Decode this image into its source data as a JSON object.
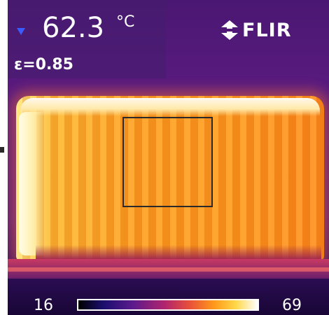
{
  "measurement": {
    "spot_temperature": "62.3",
    "unit": "°C",
    "emissivity": "ε=0.85"
  },
  "logo": {
    "text": "FLIR"
  },
  "scale": {
    "min": "16",
    "max": "69"
  },
  "colors": {
    "hot": "#fff0b0",
    "warm": "#ff9f1c",
    "cool": "#5a1a80",
    "cold": "#190636",
    "marker": "#3a5cff"
  },
  "icons": {
    "spot_marker": "triangle-down-icon",
    "logo_mark": "flir-logo-icon"
  }
}
